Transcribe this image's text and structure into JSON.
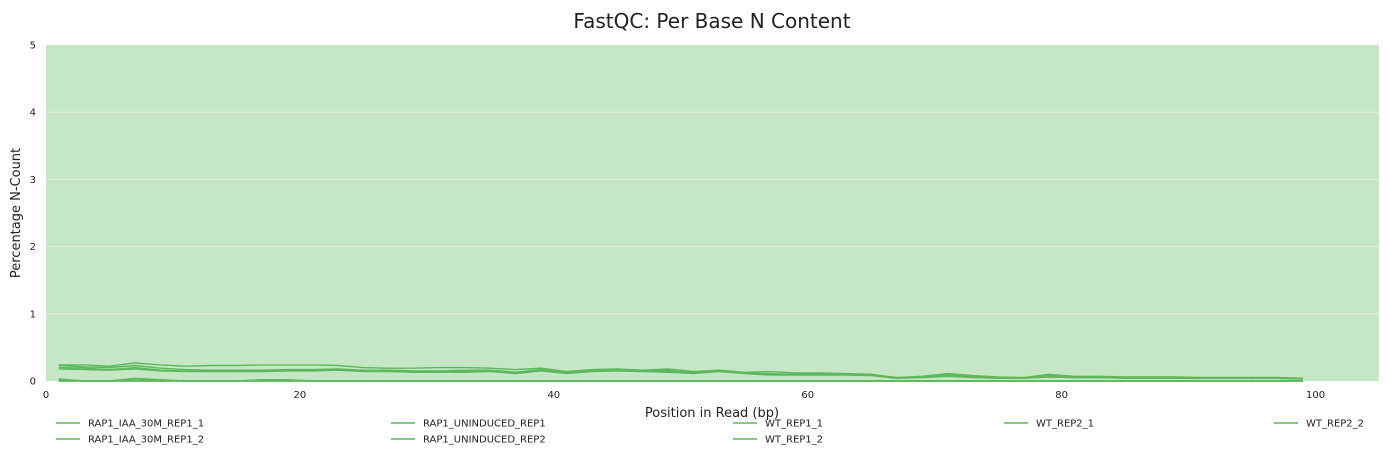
{
  "chart_data": {
    "type": "line",
    "title": "FastQC: Per Base N Content",
    "xlabel": "Position in Read (bp)",
    "ylabel": "Percentage N-Count",
    "xlim": [
      0,
      105
    ],
    "ylim": [
      0,
      5
    ],
    "xticks": [
      0,
      20,
      40,
      60,
      80,
      100
    ],
    "yticks": [
      0,
      1,
      2,
      3,
      4,
      5
    ],
    "background_color": "#c5e7c5",
    "line_color": "#5cb85c",
    "grid": true,
    "legend_position": "bottom",
    "series": [
      {
        "name": "RAP1_IAA_30M_REP1_1",
        "x": [
          1,
          3,
          5,
          7,
          9,
          11,
          13,
          15,
          17,
          19,
          21,
          23,
          25,
          27,
          29,
          31,
          33,
          35,
          37,
          39,
          41,
          43,
          45,
          47,
          49,
          51,
          53,
          55,
          57,
          59,
          61,
          63,
          65,
          67,
          69,
          71,
          73,
          75,
          77,
          79,
          81,
          83,
          85,
          87,
          89,
          91,
          93,
          95,
          97,
          99
        ],
        "y": [
          0.24,
          0.24,
          0.22,
          0.27,
          0.24,
          0.22,
          0.23,
          0.23,
          0.24,
          0.24,
          0.24,
          0.23,
          0.2,
          0.19,
          0.19,
          0.2,
          0.2,
          0.19,
          0.17,
          0.19,
          0.14,
          0.17,
          0.18,
          0.16,
          0.18,
          0.14,
          0.16,
          0.13,
          0.14,
          0.12,
          0.12,
          0.11,
          0.1,
          0.05,
          0.07,
          0.11,
          0.08,
          0.06,
          0.05,
          0.1,
          0.07,
          0.07,
          0.06,
          0.06,
          0.06,
          0.05,
          0.05,
          0.05,
          0.05,
          0.04
        ]
      },
      {
        "name": "RAP1_IAA_30M_REP1_2",
        "x": [
          1,
          3,
          5,
          7,
          9,
          11,
          13,
          15,
          17,
          19,
          21,
          23,
          25,
          27,
          29,
          31,
          33,
          35,
          37,
          39,
          41,
          43,
          45,
          47,
          49,
          51,
          53,
          55,
          57,
          59,
          61,
          63,
          65,
          67,
          69,
          71,
          73,
          75,
          77,
          79,
          81,
          83,
          85,
          87,
          89,
          91,
          93,
          95,
          97,
          99
        ],
        "y": [
          0.2,
          0.19,
          0.17,
          0.2,
          0.16,
          0.15,
          0.15,
          0.15,
          0.15,
          0.16,
          0.16,
          0.17,
          0.15,
          0.15,
          0.14,
          0.14,
          0.14,
          0.15,
          0.12,
          0.16,
          0.12,
          0.15,
          0.16,
          0.15,
          0.14,
          0.12,
          0.15,
          0.12,
          0.1,
          0.1,
          0.1,
          0.1,
          0.09,
          0.04,
          0.06,
          0.08,
          0.06,
          0.05,
          0.04,
          0.07,
          0.05,
          0.05,
          0.05,
          0.05,
          0.05,
          0.04,
          0.04,
          0.05,
          0.04,
          0.03
        ]
      },
      {
        "name": "RAP1_UNINDUCED_REP1",
        "x": [
          1,
          3,
          5,
          7,
          9,
          11,
          13,
          15,
          17,
          19,
          21,
          23,
          25,
          27,
          29,
          31,
          33,
          35,
          37,
          39,
          41,
          43,
          45,
          47,
          49,
          51,
          53,
          55,
          57,
          59,
          61,
          63,
          65,
          67,
          69,
          71,
          73,
          75,
          77,
          79,
          81,
          83,
          85,
          87,
          89,
          91,
          93,
          95,
          97,
          99
        ],
        "y": [
          0.23,
          0.21,
          0.2,
          0.23,
          0.19,
          0.17,
          0.16,
          0.16,
          0.16,
          0.17,
          0.17,
          0.18,
          0.16,
          0.16,
          0.15,
          0.15,
          0.16,
          0.16,
          0.13,
          0.17,
          0.12,
          0.15,
          0.17,
          0.15,
          0.16,
          0.12,
          0.15,
          0.12,
          0.11,
          0.1,
          0.11,
          0.1,
          0.09,
          0.05,
          0.06,
          0.1,
          0.07,
          0.05,
          0.05,
          0.08,
          0.06,
          0.06,
          0.05,
          0.05,
          0.05,
          0.05,
          0.05,
          0.05,
          0.05,
          0.04
        ]
      },
      {
        "name": "RAP1_UNINDUCED_REP2",
        "x": [
          1,
          3,
          5,
          7,
          9,
          11,
          13,
          15,
          17,
          19,
          21,
          23,
          25,
          27,
          29,
          31,
          33,
          35,
          37,
          39,
          41,
          43,
          45,
          47,
          49,
          51,
          53,
          55,
          57,
          59,
          61,
          63,
          65,
          67,
          69,
          71,
          73,
          75,
          77,
          79,
          81,
          83,
          85,
          87,
          89,
          91,
          93,
          95,
          97,
          99
        ],
        "y": [
          0.18,
          0.17,
          0.16,
          0.18,
          0.15,
          0.14,
          0.14,
          0.14,
          0.14,
          0.15,
          0.15,
          0.16,
          0.14,
          0.14,
          0.13,
          0.13,
          0.13,
          0.14,
          0.11,
          0.15,
          0.11,
          0.14,
          0.15,
          0.14,
          0.13,
          0.11,
          0.14,
          0.11,
          0.09,
          0.09,
          0.09,
          0.09,
          0.08,
          0.04,
          0.05,
          0.07,
          0.05,
          0.04,
          0.04,
          0.06,
          0.05,
          0.05,
          0.04,
          0.04,
          0.04,
          0.04,
          0.04,
          0.04,
          0.04,
          0.03
        ]
      },
      {
        "name": "WT_REP1_1",
        "x": [
          1,
          3,
          5,
          7,
          9,
          11,
          13,
          15,
          17,
          19,
          21,
          23,
          25,
          27,
          29,
          31,
          33,
          35,
          37,
          39,
          41,
          43,
          45,
          47,
          49,
          51,
          53,
          55,
          57,
          59,
          61,
          63,
          65,
          67,
          69,
          71,
          73,
          75,
          77,
          79,
          81,
          83,
          85,
          87,
          89,
          91,
          93,
          95,
          97,
          99
        ],
        "y": [
          0.03,
          0.0,
          0.0,
          0.04,
          0.02,
          0.0,
          0.0,
          0.0,
          0.02,
          0.02,
          0.0,
          0.0,
          0.0,
          0.0,
          0.0,
          0.0,
          0.0,
          0.0,
          0.0,
          0.0,
          0.0,
          0.0,
          0.0,
          0.0,
          0.0,
          0.0,
          0.0,
          0.0,
          0.0,
          0.0,
          0.0,
          0.0,
          0.0,
          0.0,
          0.0,
          0.0,
          0.0,
          0.0,
          0.0,
          0.0,
          0.0,
          0.0,
          0.0,
          0.0,
          0.0,
          0.0,
          0.0,
          0.0,
          0.0,
          0.0
        ]
      },
      {
        "name": "WT_REP1_2",
        "x": [
          1,
          3,
          5,
          7,
          9,
          11,
          13,
          15,
          17,
          19,
          21,
          23,
          25,
          27,
          29,
          31,
          33,
          35,
          37,
          39,
          41,
          43,
          45,
          47,
          49,
          51,
          53,
          55,
          57,
          59,
          61,
          63,
          65,
          67,
          69,
          71,
          73,
          75,
          77,
          79,
          81,
          83,
          85,
          87,
          89,
          91,
          93,
          95,
          97,
          99
        ],
        "y": [
          0.02,
          0.0,
          0.0,
          0.03,
          0.01,
          0.0,
          0.0,
          0.0,
          0.01,
          0.01,
          0.0,
          0.0,
          0.0,
          0.0,
          0.0,
          0.0,
          0.0,
          0.0,
          0.0,
          0.0,
          0.0,
          0.0,
          0.0,
          0.0,
          0.0,
          0.0,
          0.0,
          0.0,
          0.0,
          0.0,
          0.0,
          0.0,
          0.0,
          0.0,
          0.0,
          0.0,
          0.0,
          0.0,
          0.0,
          0.0,
          0.0,
          0.0,
          0.0,
          0.0,
          0.0,
          0.0,
          0.0,
          0.0,
          0.0,
          0.0
        ]
      },
      {
        "name": "WT_REP2_1",
        "x": [
          1,
          3,
          5,
          7,
          9,
          11,
          13,
          15,
          17,
          19,
          21,
          23,
          25,
          27,
          29,
          31,
          33,
          35,
          37,
          39,
          41,
          43,
          45,
          47,
          49,
          51,
          53,
          55,
          57,
          59,
          61,
          63,
          65,
          67,
          69,
          71,
          73,
          75,
          77,
          79,
          81,
          83,
          85,
          87,
          89,
          91,
          93,
          95,
          97,
          99
        ],
        "y": [
          0.0,
          0.0,
          0.0,
          0.0,
          0.0,
          0.0,
          0.0,
          0.0,
          0.0,
          0.0,
          0.0,
          0.0,
          0.0,
          0.0,
          0.0,
          0.0,
          0.0,
          0.0,
          0.0,
          0.0,
          0.0,
          0.0,
          0.0,
          0.0,
          0.0,
          0.0,
          0.0,
          0.0,
          0.0,
          0.0,
          0.0,
          0.0,
          0.0,
          0.0,
          0.0,
          0.0,
          0.0,
          0.0,
          0.0,
          0.0,
          0.0,
          0.0,
          0.0,
          0.0,
          0.0,
          0.0,
          0.0,
          0.0,
          0.0,
          0.0
        ]
      },
      {
        "name": "WT_REP2_2",
        "x": [
          1,
          3,
          5,
          7,
          9,
          11,
          13,
          15,
          17,
          19,
          21,
          23,
          25,
          27,
          29,
          31,
          33,
          35,
          37,
          39,
          41,
          43,
          45,
          47,
          49,
          51,
          53,
          55,
          57,
          59,
          61,
          63,
          65,
          67,
          69,
          71,
          73,
          75,
          77,
          79,
          81,
          83,
          85,
          87,
          89,
          91,
          93,
          95,
          97,
          99
        ],
        "y": [
          0.0,
          0.0,
          0.0,
          0.0,
          0.0,
          0.0,
          0.0,
          0.0,
          0.0,
          0.0,
          0.0,
          0.0,
          0.0,
          0.0,
          0.0,
          0.0,
          0.0,
          0.0,
          0.0,
          0.0,
          0.0,
          0.0,
          0.0,
          0.0,
          0.0,
          0.0,
          0.0,
          0.0,
          0.0,
          0.0,
          0.0,
          0.0,
          0.0,
          0.0,
          0.0,
          0.0,
          0.0,
          0.0,
          0.0,
          0.0,
          0.0,
          0.0,
          0.0,
          0.0,
          0.0,
          0.0,
          0.0,
          0.0,
          0.0,
          0.0
        ]
      }
    ]
  }
}
